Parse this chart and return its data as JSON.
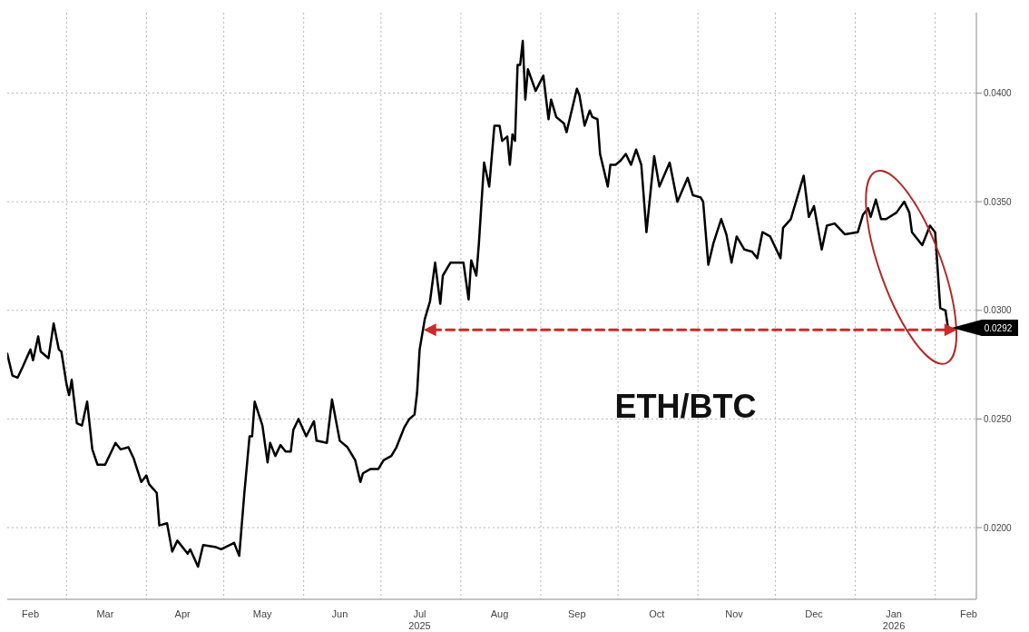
{
  "chart_data": {
    "type": "line",
    "xlim": [
      "2025-02-06",
      "2026-02-17"
    ],
    "ylim": [
      0.0167,
      0.0437
    ],
    "xticks": [
      {
        "value": "2025-02-15",
        "label": "Feb"
      },
      {
        "value": "2025-03-01",
        "label": null
      },
      {
        "value": "2025-03-16",
        "label": "Mar"
      },
      {
        "value": "2025-04-01",
        "label": null
      },
      {
        "value": "2025-04-15",
        "label": "Apr"
      },
      {
        "value": "2025-05-01",
        "label": null
      },
      {
        "value": "2025-05-16",
        "label": "May"
      },
      {
        "value": "2025-06-01",
        "label": null
      },
      {
        "value": "2025-06-15",
        "label": "Jun"
      },
      {
        "value": "2025-07-01",
        "label": null
      },
      {
        "value": "2025-07-16",
        "label": "Jul\n2025"
      },
      {
        "value": "2025-08-01",
        "label": null
      },
      {
        "value": "2025-08-16",
        "label": "Aug"
      },
      {
        "value": "2025-09-01",
        "label": null
      },
      {
        "value": "2025-09-15",
        "label": "Sep"
      },
      {
        "value": "2025-10-01",
        "label": null
      },
      {
        "value": "2025-10-16",
        "label": "Oct"
      },
      {
        "value": "2025-11-01",
        "label": null
      },
      {
        "value": "2025-11-15",
        "label": "Nov"
      },
      {
        "value": "2025-12-01",
        "label": null
      },
      {
        "value": "2025-12-16",
        "label": "Dec"
      },
      {
        "value": "2026-01-01",
        "label": null
      },
      {
        "value": "2026-01-16",
        "label": "Jan\n2026"
      },
      {
        "value": "2026-02-01",
        "label": null
      },
      {
        "value": "2026-02-14",
        "label": "Feb"
      }
    ],
    "yticks": [
      {
        "value": 0.02,
        "label": "0.0200"
      },
      {
        "value": 0.025,
        "label": "0.0250"
      },
      {
        "value": 0.03,
        "label": "0.0300"
      },
      {
        "value": 0.035,
        "label": "0.0350"
      },
      {
        "value": 0.04,
        "label": "0.0400"
      }
    ],
    "grid": true,
    "series": [
      {
        "color": "#000000",
        "x": [
          "2025-02-06",
          "2025-02-08",
          "2025-02-10",
          "2025-02-12",
          "2025-02-15",
          "2025-02-16",
          "2025-02-18",
          "2025-02-19",
          "2025-02-22",
          "2025-02-24",
          "2025-02-26",
          "2025-02-27",
          "2025-03-01",
          "2025-03-02",
          "2025-03-03",
          "2025-03-05",
          "2025-03-07",
          "2025-03-09",
          "2025-03-11",
          "2025-03-13",
          "2025-03-16",
          "2025-03-20",
          "2025-03-22",
          "2025-03-25",
          "2025-03-27",
          "2025-03-30",
          "2025-04-01",
          "2025-04-02",
          "2025-04-05",
          "2025-04-06",
          "2025-04-09",
          "2025-04-11",
          "2025-04-13",
          "2025-04-17",
          "2025-04-18",
          "2025-04-21",
          "2025-04-23",
          "2025-04-28",
          "2025-04-30",
          "2025-05-05",
          "2025-05-07",
          "2025-05-09",
          "2025-05-11",
          "2025-05-12",
          "2025-05-13",
          "2025-05-16",
          "2025-05-18",
          "2025-05-19",
          "2025-05-21",
          "2025-05-23",
          "2025-05-25",
          "2025-05-27",
          "2025-05-28",
          "2025-05-30",
          "2025-06-02",
          "2025-06-05",
          "2025-06-06",
          "2025-06-10",
          "2025-06-12",
          "2025-06-15",
          "2025-06-18",
          "2025-06-21",
          "2025-06-23",
          "2025-06-24",
          "2025-06-27",
          "2025-06-30",
          "2025-07-02",
          "2025-07-05",
          "2025-07-07",
          "2025-07-10",
          "2025-07-12",
          "2025-07-14",
          "2025-07-15",
          "2025-07-16",
          "2025-07-18",
          "2025-07-20",
          "2025-07-22",
          "2025-07-24",
          "2025-07-25",
          "2025-07-28",
          "2025-08-02",
          "2025-08-04",
          "2025-08-05",
          "2025-08-07",
          "2025-08-08",
          "2025-08-10",
          "2025-08-12",
          "2025-08-14",
          "2025-08-16",
          "2025-08-17",
          "2025-08-19",
          "2025-08-20",
          "2025-08-21",
          "2025-08-22",
          "2025-08-23",
          "2025-08-24",
          "2025-08-25",
          "2025-08-26",
          "2025-08-27",
          "2025-08-30",
          "2025-09-02",
          "2025-09-04",
          "2025-09-05",
          "2025-09-07",
          "2025-09-10",
          "2025-09-11",
          "2025-09-15",
          "2025-09-16",
          "2025-09-18",
          "2025-09-20",
          "2025-09-21",
          "2025-09-23",
          "2025-09-24",
          "2025-09-27",
          "2025-09-28",
          "2025-09-30",
          "2025-10-02",
          "2025-10-04",
          "2025-10-06",
          "2025-10-08",
          "2025-10-10",
          "2025-10-12",
          "2025-10-15",
          "2025-10-17",
          "2025-10-21",
          "2025-10-24",
          "2025-10-28",
          "2025-10-30",
          "2025-11-02",
          "2025-11-03",
          "2025-11-05",
          "2025-11-07",
          "2025-11-10",
          "2025-11-12",
          "2025-11-14",
          "2025-11-16",
          "2025-11-19",
          "2025-11-22",
          "2025-11-24",
          "2025-11-26",
          "2025-11-29",
          "2025-12-03",
          "2025-12-04",
          "2025-12-07",
          "2025-12-12",
          "2025-12-14",
          "2025-12-16",
          "2025-12-19",
          "2025-12-21",
          "2025-12-24",
          "2025-12-28",
          "2026-01-02",
          "2026-01-04",
          "2026-01-06",
          "2026-01-07",
          "2026-01-09",
          "2026-01-11",
          "2026-01-13",
          "2026-01-17",
          "2026-01-20",
          "2026-01-22",
          "2026-01-23",
          "2026-01-27",
          "2026-01-30",
          "2026-02-01",
          "2026-02-03",
          "2026-02-05",
          "2026-02-06"
        ],
        "values": [
          0.028,
          0.027,
          0.0269,
          0.0274,
          0.0282,
          0.0277,
          0.0288,
          0.0281,
          0.0278,
          0.0294,
          0.0282,
          0.0281,
          0.0266,
          0.0261,
          0.0268,
          0.0248,
          0.0247,
          0.0258,
          0.0236,
          0.0229,
          0.0229,
          0.0239,
          0.0236,
          0.0237,
          0.0232,
          0.0221,
          0.0224,
          0.022,
          0.0216,
          0.0201,
          0.0202,
          0.0189,
          0.0194,
          0.0188,
          0.019,
          0.0182,
          0.0192,
          0.0191,
          0.019,
          0.0193,
          0.0187,
          0.0216,
          0.0242,
          0.0242,
          0.0258,
          0.0247,
          0.023,
          0.0239,
          0.0233,
          0.0238,
          0.0235,
          0.0235,
          0.0245,
          0.025,
          0.0242,
          0.0249,
          0.024,
          0.0239,
          0.0259,
          0.024,
          0.0237,
          0.0231,
          0.0221,
          0.0225,
          0.0227,
          0.0227,
          0.0231,
          0.0233,
          0.0237,
          0.0246,
          0.025,
          0.0252,
          0.0262,
          0.0282,
          0.0296,
          0.0304,
          0.0322,
          0.0303,
          0.0316,
          0.0322,
          0.0322,
          0.0305,
          0.0323,
          0.0316,
          0.0331,
          0.0368,
          0.0357,
          0.0385,
          0.0385,
          0.0378,
          0.038,
          0.0367,
          0.0381,
          0.0378,
          0.0413,
          0.0413,
          0.0424,
          0.0397,
          0.0411,
          0.0401,
          0.0408,
          0.0388,
          0.0397,
          0.0389,
          0.0386,
          0.0382,
          0.0402,
          0.0399,
          0.0385,
          0.0392,
          0.0389,
          0.0388,
          0.0372,
          0.0357,
          0.0367,
          0.0367,
          0.0369,
          0.0372,
          0.0367,
          0.0374,
          0.0367,
          0.0336,
          0.0371,
          0.0357,
          0.0368,
          0.035,
          0.0361,
          0.0353,
          0.0352,
          0.035,
          0.0321,
          0.0331,
          0.0342,
          0.0335,
          0.0322,
          0.0334,
          0.0328,
          0.0327,
          0.0324,
          0.0336,
          0.0334,
          0.0324,
          0.0338,
          0.0342,
          0.0362,
          0.0343,
          0.0348,
          0.0328,
          0.0339,
          0.034,
          0.0335,
          0.0336,
          0.0344,
          0.0347,
          0.0343,
          0.0351,
          0.0342,
          0.0342,
          0.0345,
          0.035,
          0.0345,
          0.0336,
          0.033,
          0.0339,
          0.0336,
          0.0301,
          0.03,
          0.0292
        ]
      },
      {
        "color": "#cc2b2b",
        "line_style": "dashed",
        "marker": "triangle",
        "x": [
          "2025-07-21",
          "2026-02-06"
        ],
        "values": [
          0.0291,
          0.0291
        ]
      }
    ],
    "annotations": [
      "ETH/BTC",
      {
        "text": "0.0292",
        "x": "2026-02-06",
        "y": 0.0292
      }
    ]
  }
}
